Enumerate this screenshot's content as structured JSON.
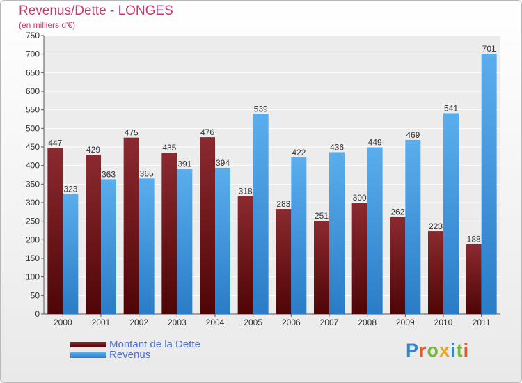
{
  "title": "Revenus/Dette - LONGES",
  "subtitle": "(en milliers d'€)",
  "colors": {
    "dette": "#7b1c22",
    "revenus": "#3f97e0",
    "title": "#c23b6b",
    "legend_text": "#4a6fe0"
  },
  "legend": {
    "dette_label": "Montant de la Dette",
    "revenus_label": "Revenus"
  },
  "logo": {
    "letters": [
      "P",
      "r",
      "o",
      "x",
      "i",
      "t",
      "i"
    ],
    "colors": [
      "#2f86d8",
      "#e05b2a",
      "#7ab73a",
      "#e8a821",
      "#2f86d8",
      "#7ab73a",
      "#e05b2a"
    ]
  },
  "chart_data": {
    "type": "bar",
    "categories": [
      "2000",
      "2001",
      "2002",
      "2003",
      "2004",
      "2005",
      "2006",
      "2007",
      "2008",
      "2009",
      "2010",
      "2011"
    ],
    "series": [
      {
        "name": "Montant de la Dette",
        "values": [
          447,
          429,
          475,
          435,
          476,
          318,
          283,
          251,
          300,
          262,
          223,
          188
        ]
      },
      {
        "name": "Revenus",
        "values": [
          323,
          363,
          365,
          391,
          394,
          539,
          422,
          436,
          449,
          469,
          541,
          701
        ]
      }
    ],
    "title": "Revenus/Dette - LONGES",
    "ylabel": "(en milliers d'€)",
    "ylim": [
      0,
      750
    ],
    "ytick_step": 50,
    "grid": true,
    "legend_position": "bottom-left"
  }
}
